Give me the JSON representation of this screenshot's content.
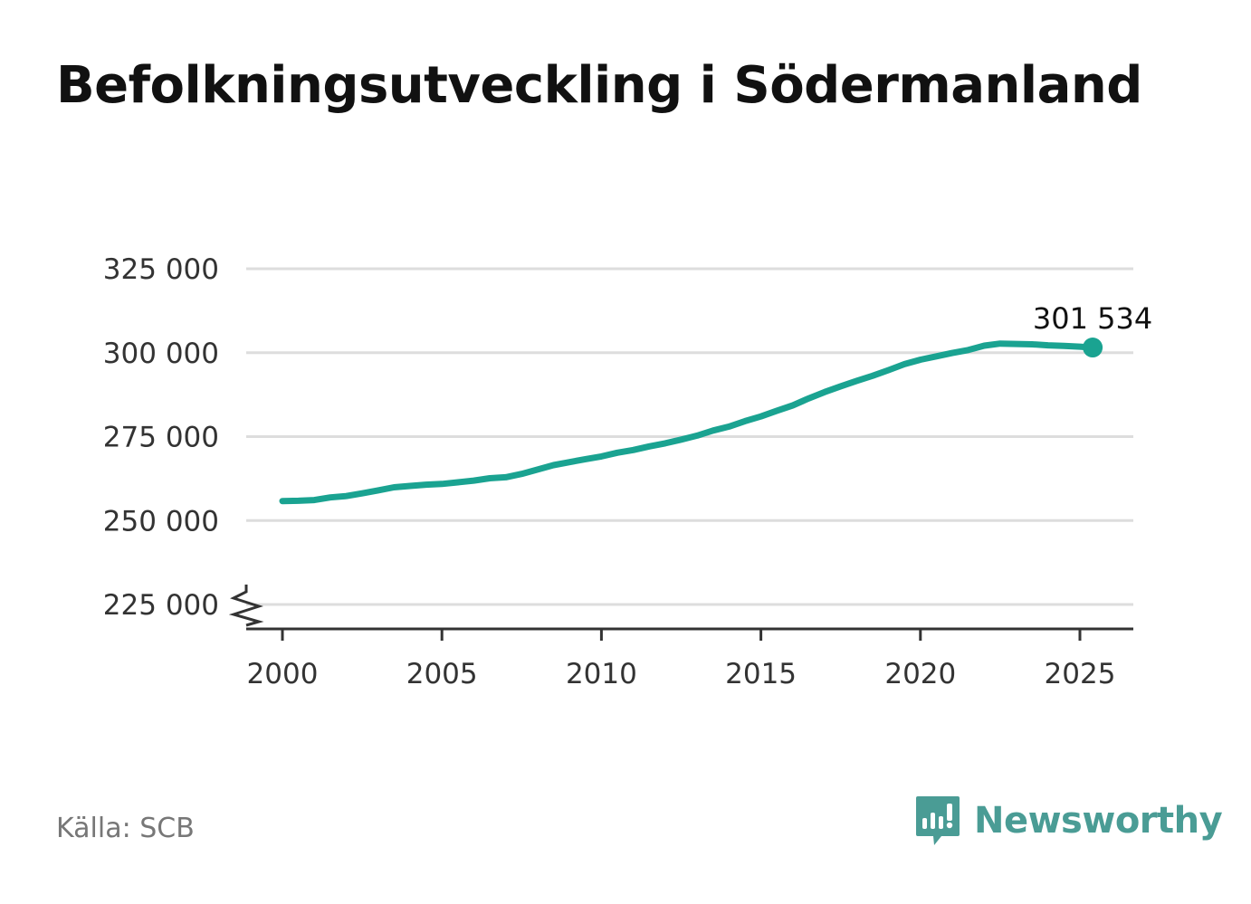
{
  "title": "Befolkningsutveckling i Södermanland",
  "source": "Källa: SCB",
  "brand": {
    "name": "Newsworthy",
    "icon": "newsworthy-logo-icon",
    "color": "#4a9c95"
  },
  "colors": {
    "line": "#1aa391",
    "grid": "#dddddd",
    "axis": "#333333",
    "text": "#333333"
  },
  "chart_data": {
    "type": "line",
    "title": "Befolkningsutveckling i Södermanland",
    "xlabel": "",
    "ylabel": "",
    "xlim": [
      1999.0,
      2026.7
    ],
    "ylim": [
      218000,
      325000
    ],
    "axis_break": true,
    "grid": true,
    "x_ticks": [
      2000,
      2005,
      2010,
      2015,
      2020,
      2025
    ],
    "y_ticks": [
      225000,
      250000,
      275000,
      300000,
      325000
    ],
    "y_tick_labels": [
      "225 000",
      "250 000",
      "275 000",
      "300 000",
      "325 000"
    ],
    "x_tick_labels": [
      "2000",
      "2005",
      "2010",
      "2015",
      "2020",
      "2025"
    ],
    "last_value_label": "301 534",
    "series": [
      {
        "x": [
          2000.0,
          2000.5,
          2001.0,
          2001.5,
          2002.0,
          2002.5,
          2003.0,
          2003.5,
          2004.0,
          2004.5,
          2005.0,
          2005.5,
          2006.0,
          2006.5,
          2007.0,
          2007.5,
          2008.0,
          2008.5,
          2009.0,
          2009.5,
          2010.0,
          2010.5,
          2011.0,
          2011.5,
          2012.0,
          2012.5,
          2013.0,
          2013.5,
          2014.0,
          2014.5,
          2015.0,
          2015.5,
          2016.0,
          2016.5,
          2017.0,
          2017.5,
          2018.0,
          2018.5,
          2019.0,
          2019.5,
          2020.0,
          2020.5,
          2021.0,
          2021.5,
          2022.0,
          2022.5,
          2023.0,
          2023.5,
          2024.0,
          2024.5,
          2025.0,
          2025.4
        ],
        "values": [
          255800,
          255900,
          256100,
          256900,
          257300,
          258100,
          259000,
          259900,
          260300,
          260700,
          260900,
          261400,
          261900,
          262600,
          262900,
          263900,
          265200,
          266500,
          267400,
          268300,
          269100,
          270200,
          271000,
          272100,
          273000,
          274100,
          275300,
          276800,
          278000,
          279600,
          281000,
          282700,
          284300,
          286400,
          288300,
          290000,
          291600,
          293100,
          294800,
          296600,
          297900,
          298900,
          299900,
          300800,
          302100,
          302700,
          302600,
          302500,
          302200,
          302000,
          301800,
          301534
        ]
      }
    ]
  }
}
